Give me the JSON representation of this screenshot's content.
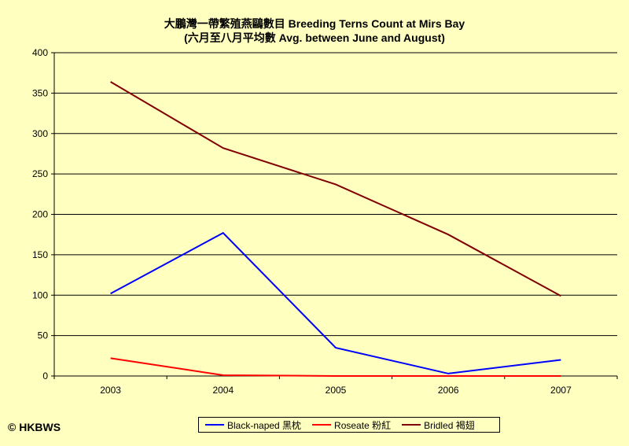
{
  "chart_data": {
    "type": "line",
    "title": "大鵬灣一帶繁殖燕鷗數目 Breeding Terns Count at Mirs Bay",
    "subtitle": "(六月至八月平均數 Avg. between June and August)",
    "x": [
      "2003",
      "2004",
      "2005",
      "2006",
      "2007"
    ],
    "ylim": [
      0,
      400
    ],
    "yticks": [
      0,
      50,
      100,
      150,
      200,
      250,
      300,
      350,
      400
    ],
    "grid": true,
    "legend_position": "bottom",
    "series": [
      {
        "name": "Black-naped 黑枕",
        "color": "#0000ff",
        "values": [
          102,
          177,
          35,
          3,
          20
        ]
      },
      {
        "name": "Roseate 粉紅",
        "color": "#ff0000",
        "values": [
          22,
          1,
          0,
          0,
          0
        ]
      },
      {
        "name": "Bridled 褐翅",
        "color": "#800000",
        "values": [
          364,
          282,
          237,
          175,
          99
        ]
      }
    ]
  },
  "credit": "© HKBWS",
  "colors": {
    "background": "#ffffc0",
    "grid": "#000000"
  }
}
